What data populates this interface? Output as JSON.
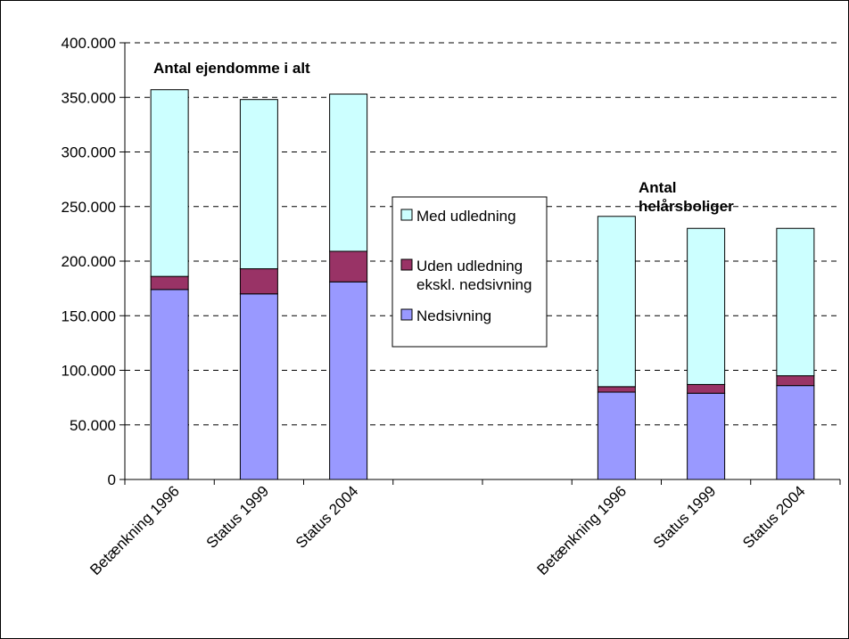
{
  "chart_data": {
    "type": "bar",
    "stacked": true,
    "categories": [
      "Betænkning 1996",
      "Status 1999",
      "Status 2004",
      "",
      "",
      "Betænkning 1996",
      "Status 1999",
      "Status 2004"
    ],
    "series": [
      {
        "name": "Nedsivning",
        "color": "#9999ff",
        "values": [
          174000,
          170000,
          181000,
          null,
          null,
          80000,
          79000,
          86000
        ]
      },
      {
        "name": "Uden udledning ekskl. nedsivning",
        "name_lines": [
          "Uden udledning",
          "ekskl. nedsivning"
        ],
        "color": "#993366",
        "values": [
          12000,
          23000,
          28000,
          null,
          null,
          5000,
          8000,
          9000
        ]
      },
      {
        "name": "Med udledning",
        "color": "#ccffff",
        "values": [
          171000,
          155000,
          144000,
          null,
          null,
          156000,
          143000,
          135000
        ]
      }
    ],
    "legend_order": [
      2,
      1,
      0
    ],
    "ylim": [
      0,
      400000
    ],
    "yticks": [
      0,
      50000,
      100000,
      150000,
      200000,
      250000,
      300000,
      350000,
      400000
    ],
    "ytick_labels": [
      "0",
      "50.000",
      "100.000",
      "150.000",
      "200.000",
      "250.000",
      "300.000",
      "350.000",
      "400.000"
    ],
    "grid": true,
    "annotations": [
      {
        "lines": [
          "Antal ejendomme i alt"
        ],
        "group": "left"
      },
      {
        "lines": [
          "Antal",
          "helårsboliger"
        ],
        "group": "right"
      }
    ],
    "legend_position": "center"
  }
}
